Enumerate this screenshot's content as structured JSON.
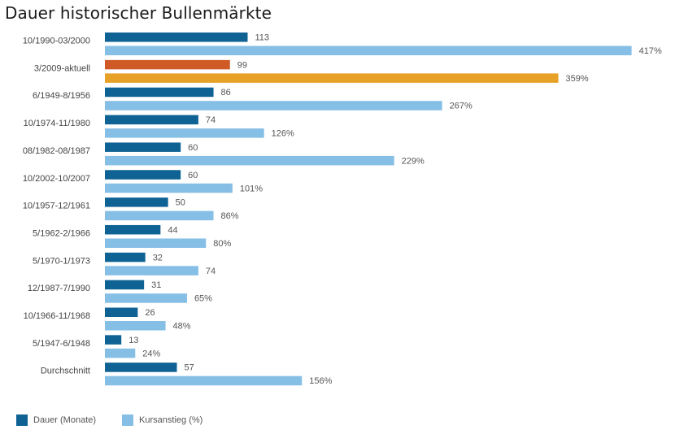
{
  "title": "Dauer historischer Bullenmärkte",
  "legend": {
    "series1_label": "Dauer (Monate)",
    "series2_label": "Kursanstieg (%)"
  },
  "colors": {
    "series1": "#0f6294",
    "series2": "#86bfe6",
    "highlight1": "#cf5a26",
    "highlight2": "#e7a126"
  },
  "chart_data": {
    "type": "bar",
    "orientation": "horizontal",
    "title": "Dauer historischer Bullenmärkte",
    "categories": [
      "10/1990-03/2000",
      "3/2009-aktuell",
      "6/1949-8/1956",
      "10/1974-11/1980",
      "08/1982-08/1987",
      "10/2002-10/2007",
      "10/1957-12/1961",
      "5/1962-2/1966",
      "5/1970-1/1973",
      "12/1987-7/1990",
      "10/1966-11/1968",
      "5/1947-6/1948",
      "Durchschnitt"
    ],
    "series": [
      {
        "name": "Dauer (Monate)",
        "values": [
          113,
          99,
          86,
          74,
          60,
          60,
          50,
          44,
          32,
          31,
          26,
          13,
          57
        ],
        "labels": [
          "113",
          "99",
          "86",
          "74",
          "60",
          "60",
          "50",
          "44",
          "32",
          "31",
          "26",
          "13",
          "57"
        ]
      },
      {
        "name": "Kursanstieg (%)",
        "values": [
          417,
          359,
          267,
          126,
          229,
          101,
          86,
          80,
          74,
          65,
          48,
          24,
          156
        ],
        "labels": [
          "417%",
          "359%",
          "267%",
          "126%",
          "229%",
          "101%",
          "86%",
          "80%",
          "74",
          "65%",
          "48%",
          "24%",
          "156%"
        ]
      }
    ],
    "highlighted_category": "3/2009-aktuell",
    "grid": false,
    "legend_position": "bottom-left"
  }
}
